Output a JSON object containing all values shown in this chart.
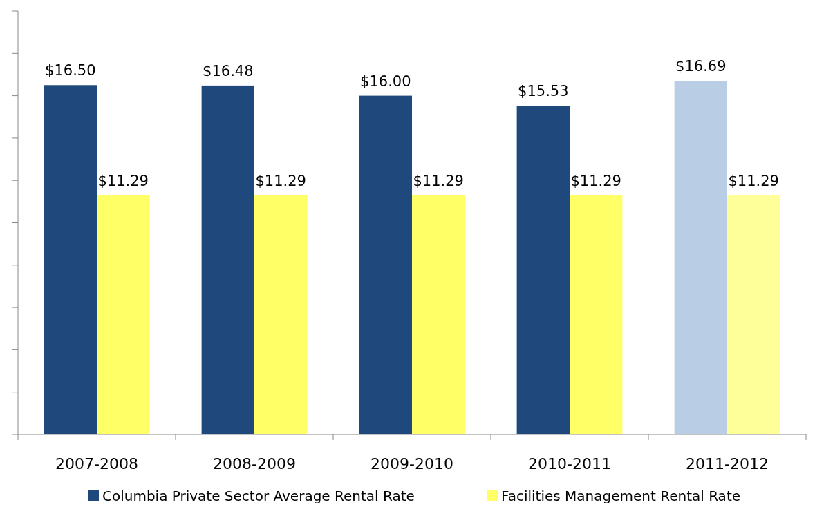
{
  "chart_data": {
    "type": "bar",
    "categories": [
      "2007-2008",
      "2008-2009",
      "2009-2010",
      "2010-2011",
      "2011-2012"
    ],
    "series": [
      {
        "name": "Columbia Private Sector Average Rental Rate",
        "color": "#1f497d",
        "colors": [
          "#1f497d",
          "#1f497d",
          "#1f497d",
          "#1f497d",
          "#b9cde5"
        ],
        "values": [
          16.5,
          16.48,
          16.0,
          15.53,
          16.69
        ],
        "value_labels": [
          "$16.50",
          "$16.48",
          "$16.00",
          "$15.53",
          "$16.69"
        ]
      },
      {
        "name": "Facilities Management Rental Rate",
        "color": "#ffff66",
        "colors": [
          "#ffff66",
          "#ffff66",
          "#ffff66",
          "#ffff66",
          "#ffff99"
        ],
        "values": [
          11.29,
          11.29,
          11.29,
          11.29,
          11.29
        ],
        "value_labels": [
          "$11.29",
          "$11.29",
          "$11.29",
          "$11.29",
          "$11.29"
        ]
      }
    ],
    "ylim": [
      0,
      20
    ],
    "yticks": [
      {
        "value": 0,
        "label": null
      },
      {
        "value": 2,
        "label": null
      },
      {
        "value": 4,
        "label": null
      },
      {
        "value": 6,
        "label": null
      },
      {
        "value": 8,
        "label": null
      },
      {
        "value": 10,
        "label": null
      },
      {
        "value": 12,
        "label": null
      },
      {
        "value": 14,
        "label": null
      },
      {
        "value": 16,
        "label": null
      },
      {
        "value": 18,
        "label": null
      },
      {
        "value": 20,
        "label": null
      }
    ],
    "tick_labels": "x",
    "grid": false,
    "legend": "bottom"
  }
}
